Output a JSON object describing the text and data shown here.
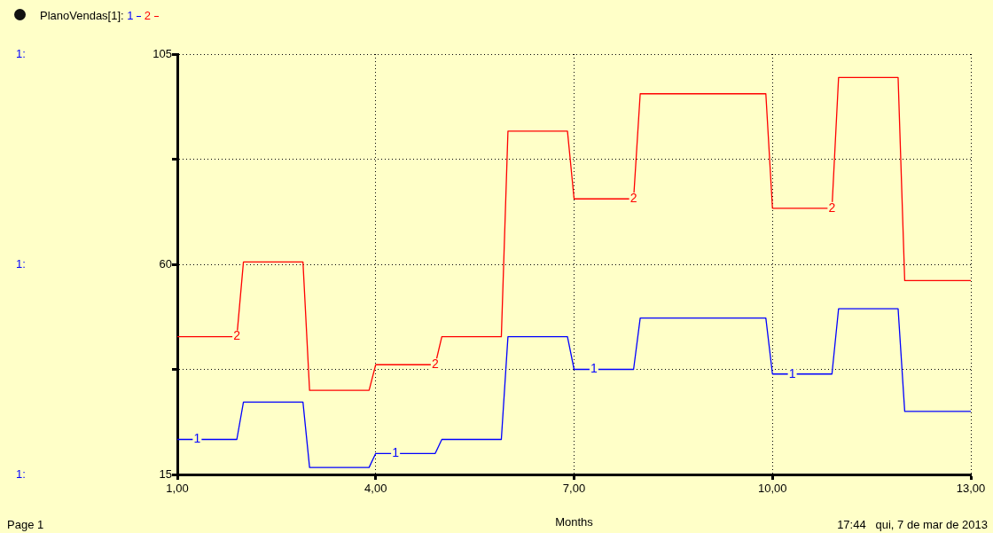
{
  "chart_data": {
    "type": "line",
    "title": "PlanoVendas[1]:",
    "xlabel": "Months",
    "x": [
      1,
      1.9,
      2,
      2.9,
      3,
      3.9,
      4,
      4.9,
      5,
      5.9,
      6,
      6.9,
      7,
      7.9,
      8,
      8.9,
      9,
      9.9,
      10,
      10.9,
      11,
      11.9,
      12,
      13
    ],
    "series": [
      {
        "name": "1",
        "color": "#0000ff",
        "values": [
          22.5,
          22.5,
          30.5,
          30.5,
          16.5,
          16.5,
          19.5,
          19.5,
          22.5,
          22.5,
          44.5,
          44.5,
          37.5,
          37.5,
          48.5,
          48.5,
          48.5,
          48.5,
          36.5,
          36.5,
          50.5,
          50.5,
          28.5,
          28.5
        ]
      },
      {
        "name": "2",
        "color": "#ff0000",
        "values": [
          44.5,
          44.5,
          60.5,
          60.5,
          33,
          33,
          38.5,
          38.5,
          44.5,
          44.5,
          88.5,
          88.5,
          74,
          74,
          96.5,
          96.5,
          96.5,
          96.5,
          72,
          72,
          100,
          100,
          56.5,
          56.5
        ]
      }
    ],
    "xlim": [
      1,
      13
    ],
    "xticks": [
      {
        "value": 1,
        "label": "1,00"
      },
      {
        "value": 4,
        "label": "4,00"
      },
      {
        "value": 7,
        "label": "7,00"
      },
      {
        "value": 10,
        "label": "10,00"
      },
      {
        "value": 13,
        "label": "13,00"
      }
    ],
    "ylim": [
      15,
      105
    ],
    "yticks": [
      15,
      {
        "value": 37.5,
        "label": null
      },
      60,
      {
        "value": 82.5,
        "label": null
      },
      105
    ],
    "grid": true,
    "legend": "top left",
    "marker": "none",
    "line_style": "solid",
    "annotations": [
      "1:",
      "1:",
      "1:",
      "Page 1",
      "17:44   qui, 7 de mar de 2013"
    ]
  }
}
